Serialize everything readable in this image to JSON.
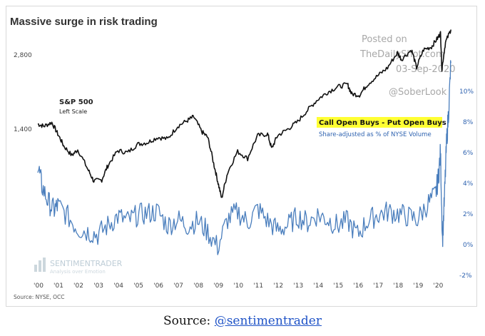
{
  "caption": {
    "prefix": "Source: ",
    "link_text": "@sentimentrader"
  },
  "colors": {
    "sp500": "#111111",
    "spread": "#4a7ebd",
    "highlight": "#ffff33",
    "axis_text": "#444444",
    "right_axis_text": "#2f63b0",
    "watermark": "#a8a8a8"
  },
  "chart_data": {
    "type": "line",
    "title": "Massive surge in risk trading",
    "source_note": "Source: NYSE, OCC",
    "x_ticks": [
      "'00",
      "'01",
      "'02",
      "'03",
      "'04",
      "'05",
      "'06",
      "'07",
      "'08",
      "'09",
      "'10",
      "'11",
      "'12",
      "'13",
      "'14",
      "'15",
      "'16",
      "'17",
      "'18",
      "'19",
      "'20"
    ],
    "left_axis": {
      "ticks": [
        "2,800",
        "1,400"
      ],
      "scale": "log"
    },
    "right_axis": {
      "ticks": [
        "10%",
        "8%",
        "6%",
        "4%",
        "2%",
        "0%",
        "-2%"
      ],
      "range": [
        -2,
        10
      ]
    },
    "annotations": {
      "sp500_label": "S&P 500",
      "sp500_sub": "Left Scale",
      "spread_label": "Call Open Buys - Put Open Buys",
      "spread_sub": "Share-adjusted as % of NYSE Volume",
      "watermark_line1": "Posted on",
      "watermark_line2": "TheDailyShot.com",
      "watermark_line3": "03-Sep-2020",
      "watermark_handle": "@SoberLook",
      "logo_name": "SENTIMENTRADER",
      "logo_tagline": "Analysis over Emotion"
    },
    "series": [
      {
        "name": "S&P 500",
        "axis": "left",
        "x": [
          2000.0,
          2000.3,
          2000.7,
          2001.0,
          2001.3,
          2001.7,
          2002.0,
          2002.5,
          2002.8,
          2003.2,
          2003.5,
          2004.0,
          2004.5,
          2005.0,
          2005.5,
          2006.0,
          2006.5,
          2007.0,
          2007.5,
          2007.8,
          2008.2,
          2008.5,
          2008.8,
          2009.0,
          2009.2,
          2009.5,
          2010.0,
          2010.5,
          2011.0,
          2011.5,
          2011.7,
          2012.0,
          2012.5,
          2013.0,
          2013.5,
          2014.0,
          2014.5,
          2015.0,
          2015.5,
          2015.7,
          2016.1,
          2016.5,
          2017.0,
          2017.5,
          2018.0,
          2018.2,
          2018.7,
          2018.95,
          2019.3,
          2019.7,
          2020.0,
          2020.15,
          2020.22,
          2020.4,
          2020.67
        ],
        "values": [
          1450,
          1420,
          1470,
          1320,
          1180,
          1080,
          1140,
          950,
          850,
          860,
          980,
          1130,
          1110,
          1200,
          1220,
          1280,
          1260,
          1420,
          1500,
          1550,
          1350,
          1280,
          1000,
          850,
          720,
          920,
          1120,
          1050,
          1300,
          1320,
          1150,
          1300,
          1380,
          1480,
          1650,
          1820,
          1950,
          2050,
          2100,
          1920,
          1900,
          2100,
          2270,
          2450,
          2820,
          2650,
          2900,
          2450,
          2900,
          2980,
          3230,
          3380,
          2400,
          3100,
          3500
        ]
      },
      {
        "name": "Call Open Buys - Put Open Buys",
        "axis": "right",
        "x": [
          2000.0,
          2000.2,
          2000.5,
          2000.8,
          2001.0,
          2001.5,
          2002.0,
          2002.5,
          2003.0,
          2003.5,
          2004.0,
          2004.5,
          2005.0,
          2005.5,
          2006.0,
          2006.5,
          2007.0,
          2007.5,
          2008.0,
          2008.5,
          2009.0,
          2009.5,
          2010.0,
          2010.5,
          2011.0,
          2011.5,
          2012.0,
          2012.5,
          2013.0,
          2013.5,
          2014.0,
          2014.5,
          2015.0,
          2015.5,
          2016.0,
          2016.5,
          2017.0,
          2017.5,
          2018.0,
          2018.5,
          2019.0,
          2019.5,
          2019.9,
          2020.05,
          2020.15,
          2020.25,
          2020.35,
          2020.45,
          2020.55,
          2020.67
        ],
        "values": [
          5.2,
          3.8,
          2.8,
          2.2,
          2.5,
          1.8,
          1.0,
          0.8,
          0.6,
          1.2,
          1.8,
          1.5,
          1.9,
          2.0,
          2.1,
          1.2,
          1.6,
          1.2,
          1.5,
          0.8,
          -0.2,
          1.6,
          2.1,
          1.4,
          2.3,
          1.5,
          0.9,
          1.2,
          1.8,
          1.4,
          1.9,
          1.6,
          1.2,
          1.5,
          0.6,
          1.5,
          1.9,
          2.1,
          2.0,
          1.8,
          1.6,
          2.6,
          3.2,
          4.4,
          6.0,
          0.2,
          3.0,
          6.5,
          8.5,
          11.8
        ]
      }
    ]
  }
}
